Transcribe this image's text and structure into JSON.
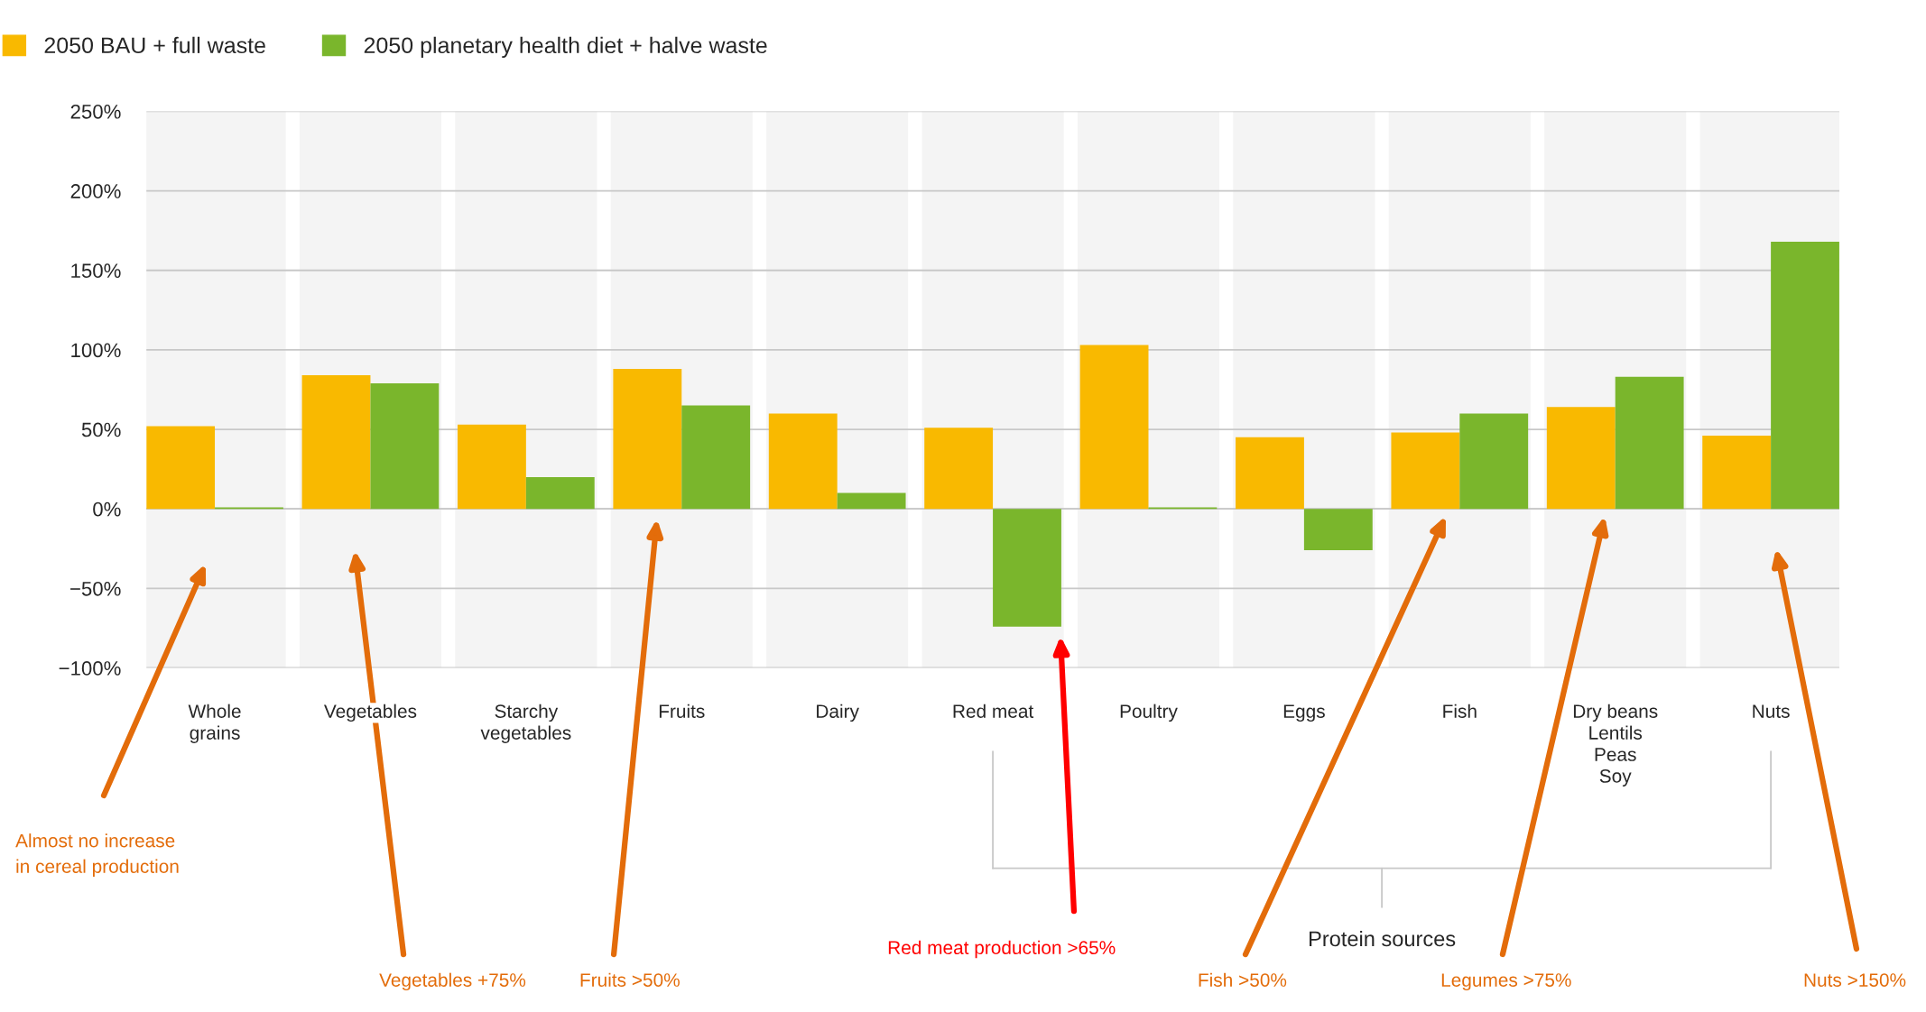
{
  "chart_data": {
    "type": "bar",
    "categories": [
      "Whole\ngrains",
      "Vegetables",
      "Starchy\nvegetables",
      "Fruits",
      "Dairy",
      "Red meat",
      "Poultry",
      "Eggs",
      "Fish",
      "Dry beans\nLentils\nPeas\nSoy",
      "Nuts"
    ],
    "series": [
      {
        "name": "2050 BAU + full waste",
        "color": "#f9b900",
        "values": [
          52,
          84,
          53,
          88,
          60,
          51,
          103,
          45,
          48,
          64,
          46
        ]
      },
      {
        "name": "2050 planetary health diet + halve waste",
        "color": "#7ab62c",
        "values": [
          1,
          79,
          20,
          65,
          10,
          -74,
          1,
          -26,
          60,
          83,
          168
        ]
      }
    ],
    "ylim": [
      -100,
      250
    ],
    "yticks": [
      {
        "value": -100,
        "label": "−100%"
      },
      {
        "value": -50,
        "label": "−50%"
      },
      {
        "value": 0,
        "label": "0%"
      },
      {
        "value": 50,
        "label": "50%"
      },
      {
        "value": 100,
        "label": "100%"
      },
      {
        "value": 150,
        "label": "150%"
      },
      {
        "value": 200,
        "label": "200%"
      },
      {
        "value": 250,
        "label": "250%"
      }
    ],
    "grid": "y",
    "legend": "top left",
    "annotations": [
      "Almost no increase\nin cereal production",
      "Vegetables +75%",
      "Fruits >50%",
      "Red meat production >65%",
      "Fish >50%",
      "Legumes >75%",
      "Nuts >150%",
      "Protein sources"
    ]
  }
}
